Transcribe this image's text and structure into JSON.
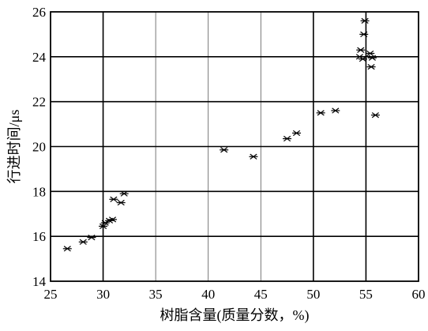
{
  "chart_data": {
    "type": "scatter",
    "title": "",
    "xlabel": "树脂含量(质量分数，%)",
    "ylabel": "行进时间/μs",
    "xlim": [
      25,
      60
    ],
    "ylim": [
      14,
      26
    ],
    "x_ticks": [
      25,
      30,
      35,
      40,
      45,
      50,
      55,
      60
    ],
    "y_ticks": [
      14,
      16,
      18,
      20,
      22,
      24,
      26
    ],
    "x_tick_labels": [
      "25",
      "30",
      "35",
      "40",
      "45",
      "50",
      "55",
      "60"
    ],
    "y_tick_labels": [
      "14",
      "16",
      "18",
      "20",
      "22",
      "24",
      "26"
    ],
    "grid": true,
    "marker": "asterisk",
    "series": [
      {
        "points": [
          {
            "x": 26.6,
            "y": 15.45
          },
          {
            "x": 28.1,
            "y": 15.75
          },
          {
            "x": 28.9,
            "y": 15.95
          },
          {
            "x": 30.0,
            "y": 16.45
          },
          {
            "x": 30.2,
            "y": 16.6
          },
          {
            "x": 30.6,
            "y": 16.7
          },
          {
            "x": 30.9,
            "y": 16.75
          },
          {
            "x": 31.0,
            "y": 17.65
          },
          {
            "x": 31.7,
            "y": 17.5
          },
          {
            "x": 32.0,
            "y": 17.9
          },
          {
            "x": 41.5,
            "y": 19.85
          },
          {
            "x": 44.3,
            "y": 19.55
          },
          {
            "x": 47.5,
            "y": 20.35
          },
          {
            "x": 48.4,
            "y": 20.6
          },
          {
            "x": 50.7,
            "y": 21.5
          },
          {
            "x": 52.1,
            "y": 21.6
          },
          {
            "x": 54.5,
            "y": 24.3
          },
          {
            "x": 54.4,
            "y": 24.0
          },
          {
            "x": 54.7,
            "y": 23.9
          },
          {
            "x": 54.8,
            "y": 25.0
          },
          {
            "x": 54.9,
            "y": 25.6
          },
          {
            "x": 55.4,
            "y": 24.15
          },
          {
            "x": 55.5,
            "y": 23.55
          },
          {
            "x": 55.6,
            "y": 23.95
          },
          {
            "x": 55.9,
            "y": 21.4
          }
        ]
      }
    ]
  }
}
